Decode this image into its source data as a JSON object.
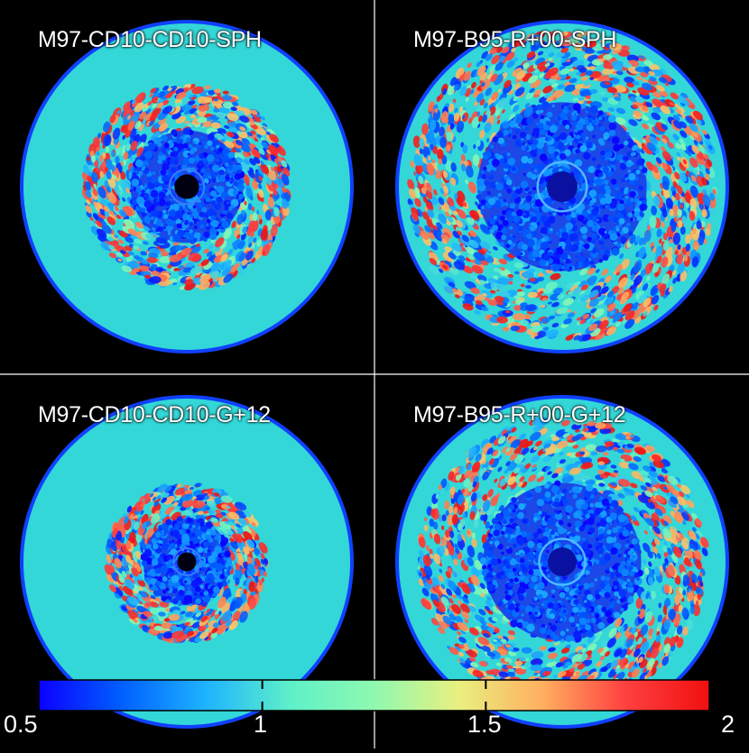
{
  "panels": [
    {
      "title": "M97-CD10-CD10-SPH",
      "cavity": "dark",
      "active_extent": 0.62
    },
    {
      "title": "M97-B95-R+00-SPH",
      "cavity": "ring",
      "active_extent": 0.93
    },
    {
      "title": "M97-CD10-CD10-G+12",
      "cavity": "dark",
      "active_extent": 0.48
    },
    {
      "title": "M97-B95-R+00-G+12",
      "cavity": "ring",
      "active_extent": 0.87
    }
  ],
  "colorbar": {
    "min": 0.5,
    "max": 2,
    "tick_values": [
      1,
      1.5
    ],
    "labels": [
      "0.5",
      "1",
      "1.5",
      "2"
    ],
    "colors": [
      "#0b00ff",
      "#0060ff",
      "#1fb4ff",
      "#5ef0c8",
      "#8ff8b0",
      "#e8f080",
      "#ffb060",
      "#ff4040",
      "#f01010"
    ]
  },
  "colors": {
    "background": "#000000",
    "disk_fill": "#33d7d7",
    "disk_rim": "#1040ff",
    "divider": "#ffffff"
  }
}
